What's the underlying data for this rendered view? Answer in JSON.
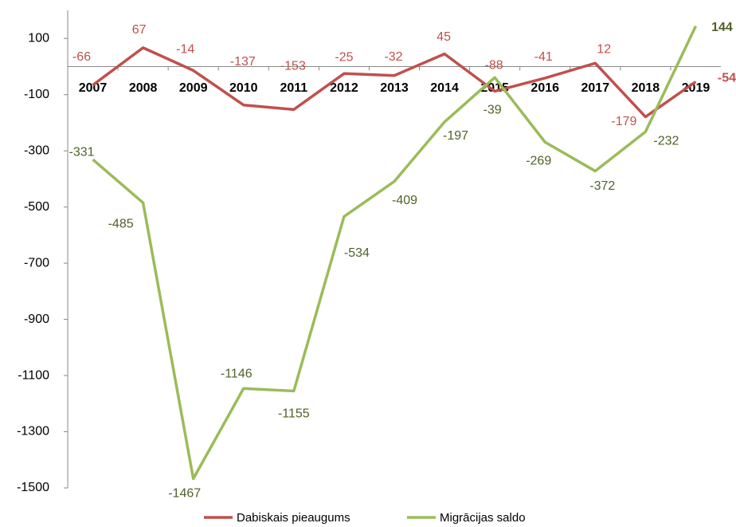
{
  "chart_data": {
    "type": "line",
    "categories": [
      "2007",
      "2008",
      "2009",
      "2010",
      "2011",
      "2012",
      "2013",
      "2014",
      "2015",
      "2016",
      "2017",
      "2018",
      "2019"
    ],
    "series": [
      {
        "name": "Dabiskais pieaugums",
        "color": "#c0504d",
        "values": [
          -66,
          67,
          -14,
          -137,
          -153,
          -25,
          -32,
          45,
          -88,
          -41,
          12,
          -179,
          -54
        ]
      },
      {
        "name": "Migrācijas saldo",
        "color": "#9bbb59",
        "values": [
          -331,
          -485,
          -1467,
          -1146,
          -1155,
          -534,
          -409,
          -197,
          -39,
          -269,
          -372,
          -232,
          144
        ]
      }
    ],
    "ylim": [
      -1500,
      200
    ],
    "yticks": [
      100,
      -100,
      -300,
      -500,
      -700,
      -900,
      -1100,
      -1300,
      -1500
    ],
    "grid": false
  }
}
